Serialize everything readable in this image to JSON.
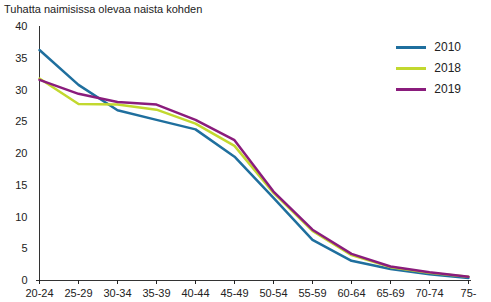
{
  "chart_data": {
    "type": "line",
    "title": "Tuhatta naimisissa olevaa naista kohden",
    "categories": [
      "20-24",
      "25-29",
      "30-34",
      "35-39",
      "40-44",
      "45-49",
      "50-54",
      "55-59",
      "60-64",
      "65-69",
      "70-74",
      "75-"
    ],
    "series": [
      {
        "name": "2010",
        "color": "#1f6f9e",
        "values": [
          36.3,
          30.8,
          26.8,
          25.3,
          23.8,
          19.5,
          13.0,
          6.4,
          3.1,
          1.8,
          1.0,
          0.4
        ]
      },
      {
        "name": "2018",
        "color": "#c2d82f",
        "values": [
          31.8,
          27.8,
          27.7,
          26.9,
          24.7,
          21.2,
          13.8,
          7.8,
          4.0,
          2.1,
          1.2,
          0.6
        ]
      },
      {
        "name": "2019",
        "color": "#8a1c7c",
        "values": [
          31.6,
          29.4,
          28.1,
          27.7,
          25.3,
          22.1,
          14.0,
          8.0,
          4.2,
          2.2,
          1.3,
          0.6
        ]
      }
    ],
    "ylim": [
      0,
      40
    ],
    "yticks": [
      0,
      5,
      10,
      15,
      20,
      25,
      30,
      35,
      40
    ],
    "grid": false,
    "legend": "top-right"
  }
}
